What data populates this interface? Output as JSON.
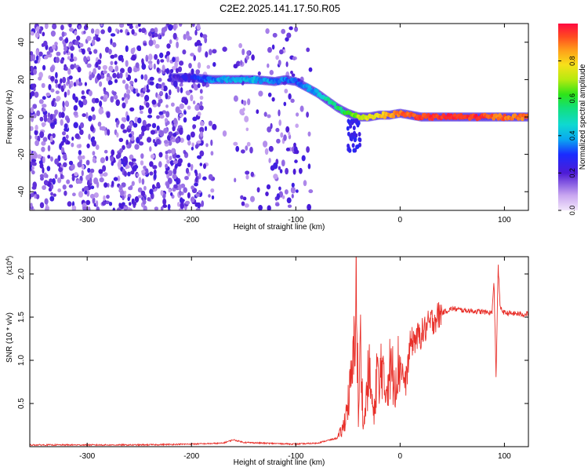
{
  "title": "C2E2.2025.141.17.50.R05",
  "chart_data": [
    {
      "type": "heatmap",
      "xlabel": "Height of straight line (km)",
      "ylabel": "Frequency (Hz)",
      "xlim": [
        -355,
        123
      ],
      "ylim": [
        -50,
        50
      ],
      "xticks": [
        -300,
        -200,
        -100,
        0,
        100
      ],
      "yticks": [
        -40,
        -20,
        0,
        20,
        40
      ],
      "colorbar": {
        "label": "Normalized spectral amplitude",
        "range": [
          0.0,
          1.0
        ],
        "ticks": [
          "0.0",
          "0.2",
          "0.4",
          "0.6",
          "0.8"
        ]
      },
      "ridge": {
        "x": [
          -220,
          -200,
          -180,
          -160,
          -140,
          -120,
          -110,
          -100,
          -90,
          -80,
          -70,
          -60,
          -50,
          -40,
          -30,
          -20,
          -10,
          0,
          20,
          40,
          60,
          80,
          90,
          100,
          123
        ],
        "y": [
          21,
          21,
          20,
          20,
          20,
          19,
          20,
          19,
          16,
          13,
          9,
          5,
          2,
          0,
          0,
          1,
          1,
          2,
          0,
          0,
          0,
          0,
          0,
          0,
          0
        ],
        "amplitude": [
          0.2,
          0.25,
          0.35,
          0.4,
          0.4,
          0.35,
          0.35,
          0.3,
          0.35,
          0.4,
          0.5,
          0.55,
          0.6,
          0.7,
          0.75,
          0.8,
          0.85,
          0.9,
          0.95,
          0.95,
          0.95,
          0.95,
          0.9,
          0.9,
          0.9
        ]
      }
    },
    {
      "type": "line",
      "xlabel": "Height of straight line (km)",
      "ylabel": "SNR (10 * v/v)",
      "yexponent": "(x10",
      "yexponent_power": "4",
      "yexponent_close": ")",
      "xlim": [
        -355,
        123
      ],
      "ylim": [
        0,
        2.2
      ],
      "xticks": [
        -300,
        -200,
        -100,
        0,
        100
      ],
      "yticks": [
        "0.5",
        "1.0",
        "1.5",
        "2.0"
      ],
      "series": [
        {
          "color": "#e8302a",
          "x": [
            -355,
            -300,
            -250,
            -200,
            -170,
            -160,
            -150,
            -130,
            -100,
            -80,
            -60,
            -55,
            -50,
            -45,
            -42,
            -40,
            -38,
            -35,
            -30,
            -25,
            -22,
            -20,
            -18,
            -15,
            -10,
            -5,
            0,
            5,
            10,
            20,
            30,
            40,
            50,
            60,
            70,
            80,
            88,
            90,
            92,
            94,
            96,
            100,
            110,
            120,
            123
          ],
          "y": [
            0.02,
            0.02,
            0.02,
            0.03,
            0.04,
            0.08,
            0.05,
            0.04,
            0.03,
            0.04,
            0.1,
            0.2,
            0.5,
            0.9,
            1.9,
            0.3,
            1.2,
            0.2,
            0.9,
            0.3,
            1.0,
            0.5,
            1.1,
            0.6,
            0.9,
            0.8,
            1.0,
            0.7,
            1.2,
            1.3,
            1.45,
            1.55,
            1.6,
            1.58,
            1.57,
            1.56,
            1.55,
            1.9,
            0.8,
            2.1,
            1.6,
            1.55,
            1.54,
            1.53,
            1.55
          ]
        }
      ]
    }
  ]
}
